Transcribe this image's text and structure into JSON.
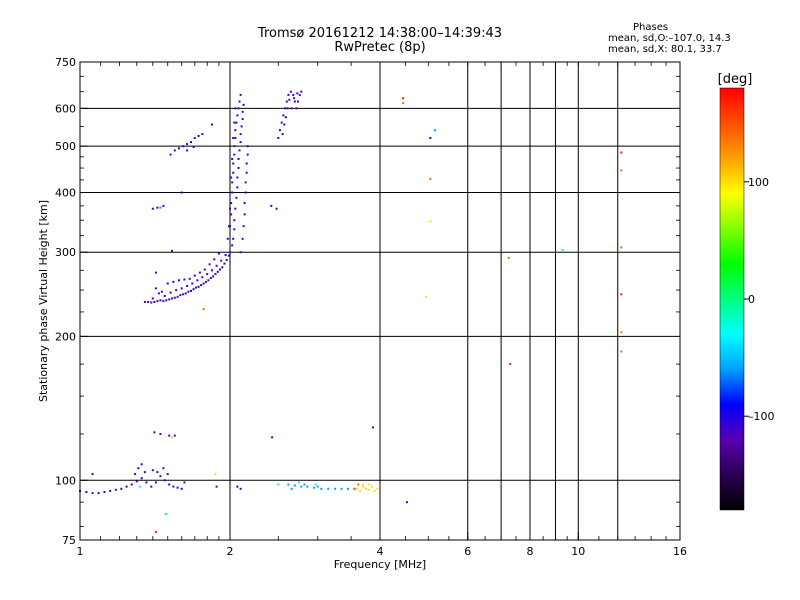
{
  "title": "Tromsø 20161212 14:38:00–14:39:43",
  "subtitle": "RwPretec (8p)",
  "phases_note": {
    "heading": "Phases",
    "line_o": "mean, sd,O:–107.0, 14.3",
    "line_x": "mean, sd,X:  80.1, 33.7"
  },
  "chart_data": {
    "type": "scatter",
    "title": "Tromsø 20161212 14:38:00–14:39:43",
    "subtitle": "RwPretec (8p)",
    "xlabel": "Frequency [MHz]",
    "ylabel": "Stationary phase Virtual Height [km]",
    "x_scale": "log",
    "y_scale": "log",
    "xlim": [
      1,
      16
    ],
    "ylim": [
      75,
      750
    ],
    "x_ticks": [
      1,
      2,
      4,
      6,
      8,
      10,
      16
    ],
    "x_tick_labels": [
      "1",
      "2",
      "4",
      "6",
      "8",
      "10",
      "16"
    ],
    "x_gridlines": [
      2,
      4,
      6,
      7,
      8,
      9,
      10,
      12
    ],
    "y_ticks": [
      75,
      100,
      200,
      300,
      400,
      500,
      600,
      750
    ],
    "y_tick_labels": [
      "75",
      "100",
      "200",
      "300",
      "400",
      "500",
      "600",
      "750"
    ],
    "y_gridlines": [
      100,
      200,
      300,
      400,
      500,
      600
    ],
    "grid": true,
    "colorbar": {
      "label": "[deg]",
      "range": [
        -180,
        180
      ],
      "ticks": [
        100,
        0,
        -100
      ],
      "tick_labels": [
        "100",
        "0",
        "–100"
      ],
      "colors": [
        "#000000",
        "#2a0050",
        "#5a00b0",
        "#0000ff",
        "#00a0ff",
        "#00ffff",
        "#00ff80",
        "#00ff00",
        "#80ff00",
        "#ffff00",
        "#ffa000",
        "#ff5000",
        "#ff0000"
      ]
    },
    "series": [
      {
        "phase": -110,
        "points": [
          [
            1.0,
            95
          ],
          [
            1.03,
            94.5
          ],
          [
            1.06,
            94
          ],
          [
            1.09,
            94
          ],
          [
            1.12,
            94.5
          ],
          [
            1.15,
            95
          ],
          [
            1.18,
            95.5
          ],
          [
            1.21,
            96
          ],
          [
            1.24,
            97
          ],
          [
            1.27,
            98
          ],
          [
            1.3,
            99.5
          ],
          [
            1.33,
            101
          ],
          [
            1.36,
            99
          ],
          [
            1.39,
            97
          ],
          [
            1.42,
            99
          ],
          [
            1.45,
            102
          ],
          [
            1.48,
            100
          ],
          [
            1.51,
            98
          ],
          [
            1.54,
            97
          ],
          [
            1.57,
            96.5
          ],
          [
            1.6,
            96
          ],
          [
            1.29,
            103
          ],
          [
            1.31,
            106
          ],
          [
            1.33,
            108
          ],
          [
            1.35,
            104
          ],
          [
            1.4,
            105
          ],
          [
            1.43,
            104
          ],
          [
            1.47,
            106
          ],
          [
            1.5,
            103
          ],
          [
            1.41,
            126
          ],
          [
            1.45,
            125
          ],
          [
            1.51,
            124
          ],
          [
            1.55,
            124
          ],
          [
            1.06,
            103
          ],
          [
            1.62,
            99
          ],
          [
            1.88,
            97
          ],
          [
            2.07,
            97
          ],
          [
            2.1,
            96
          ],
          [
            2.43,
            123
          ],
          [
            3.87,
            129
          ],
          [
            4.53,
            90
          ],
          [
            1.35,
            236
          ],
          [
            1.37,
            236
          ],
          [
            1.39,
            235.5
          ],
          [
            1.41,
            236
          ],
          [
            1.43,
            237
          ],
          [
            1.45,
            238
          ],
          [
            1.47,
            237
          ],
          [
            1.49,
            238
          ],
          [
            1.51,
            239
          ],
          [
            1.53,
            240
          ],
          [
            1.55,
            241
          ],
          [
            1.57,
            242
          ],
          [
            1.59,
            244
          ],
          [
            1.61,
            245
          ],
          [
            1.63,
            246
          ],
          [
            1.65,
            248
          ],
          [
            1.67,
            249
          ],
          [
            1.69,
            251
          ],
          [
            1.71,
            253
          ],
          [
            1.73,
            254
          ],
          [
            1.75,
            256
          ],
          [
            1.77,
            258
          ],
          [
            1.79,
            260
          ],
          [
            1.81,
            262
          ],
          [
            1.83,
            265
          ],
          [
            1.85,
            267
          ],
          [
            1.87,
            270
          ],
          [
            1.89,
            273
          ],
          [
            1.91,
            276
          ],
          [
            1.93,
            279
          ],
          [
            1.95,
            284
          ],
          [
            1.97,
            289
          ],
          [
            1.99,
            295
          ],
          [
            2.0,
            300
          ],
          [
            2.02,
            310
          ],
          [
            2.03,
            320
          ],
          [
            2.04,
            335
          ],
          [
            1.4,
            240
          ],
          [
            1.44,
            246
          ],
          [
            1.48,
            243
          ],
          [
            1.52,
            247
          ],
          [
            1.56,
            250
          ],
          [
            1.6,
            252
          ],
          [
            1.64,
            255
          ],
          [
            1.68,
            258
          ],
          [
            1.72,
            262
          ],
          [
            1.76,
            266
          ],
          [
            1.8,
            270
          ],
          [
            1.84,
            275
          ],
          [
            1.88,
            281
          ],
          [
            1.92,
            288
          ],
          [
            1.96,
            296
          ],
          [
            1.42,
            252
          ],
          [
            1.46,
            248
          ],
          [
            1.5,
            258
          ],
          [
            1.54,
            260
          ],
          [
            1.58,
            262
          ],
          [
            1.62,
            263
          ],
          [
            1.66,
            264
          ],
          [
            1.7,
            268
          ],
          [
            1.74,
            272
          ],
          [
            1.78,
            276
          ],
          [
            1.82,
            283
          ],
          [
            1.86,
            290
          ],
          [
            1.9,
            298
          ],
          [
            2.0,
            340
          ],
          [
            2.01,
            360
          ],
          [
            2.01,
            380
          ],
          [
            2.02,
            400
          ],
          [
            2.02,
            420
          ],
          [
            2.03,
            440
          ],
          [
            2.03,
            460
          ],
          [
            2.04,
            480
          ],
          [
            2.04,
            500
          ],
          [
            2.05,
            520
          ],
          [
            2.05,
            540
          ],
          [
            2.06,
            560
          ],
          [
            2.07,
            580
          ],
          [
            2.08,
            600
          ],
          [
            2.09,
            620
          ],
          [
            2.1,
            640
          ],
          [
            2.04,
            350
          ],
          [
            2.05,
            370
          ],
          [
            2.06,
            390
          ],
          [
            2.07,
            410
          ],
          [
            2.07,
            430
          ],
          [
            2.08,
            450
          ],
          [
            2.08,
            470
          ],
          [
            2.09,
            490
          ],
          [
            2.1,
            510
          ],
          [
            2.1,
            530
          ],
          [
            2.11,
            550
          ],
          [
            2.12,
            570
          ],
          [
            2.12,
            590
          ],
          [
            2.13,
            610
          ],
          [
            2.1,
            300
          ],
          [
            2.12,
            320
          ],
          [
            2.13,
            340
          ],
          [
            2.14,
            360
          ],
          [
            2.14,
            380
          ],
          [
            2.15,
            400
          ],
          [
            2.15,
            420
          ],
          [
            2.16,
            440
          ],
          [
            2.16,
            460
          ],
          [
            2.17,
            480
          ],
          [
            2.17,
            500
          ],
          [
            1.98,
            320
          ],
          [
            1.99,
            340
          ],
          [
            2.0,
            370
          ],
          [
            2.01,
            430
          ],
          [
            2.02,
            470
          ],
          [
            2.03,
            520
          ],
          [
            2.04,
            560
          ],
          [
            2.05,
            600
          ],
          [
            2.5,
            520
          ],
          [
            2.52,
            540
          ],
          [
            2.54,
            560
          ],
          [
            2.56,
            580
          ],
          [
            2.58,
            600
          ],
          [
            2.6,
            620
          ],
          [
            2.62,
            640
          ],
          [
            2.65,
            650
          ],
          [
            2.68,
            640
          ],
          [
            2.7,
            620
          ],
          [
            2.72,
            600
          ],
          [
            2.74,
            620
          ],
          [
            2.76,
            640
          ],
          [
            2.78,
            650
          ],
          [
            2.55,
            530
          ],
          [
            2.57,
            555
          ],
          [
            2.59,
            575
          ],
          [
            2.61,
            600
          ],
          [
            2.63,
            625
          ],
          [
            2.66,
            600
          ],
          [
            2.69,
            630
          ],
          [
            2.73,
            645
          ],
          [
            1.52,
            480
          ],
          [
            1.55,
            490
          ],
          [
            1.58,
            495
          ],
          [
            1.61,
            500
          ],
          [
            1.64,
            505
          ],
          [
            1.67,
            510
          ],
          [
            1.7,
            520
          ],
          [
            1.73,
            525
          ],
          [
            1.76,
            530
          ],
          [
            1.64,
            490
          ],
          [
            1.69,
            498
          ],
          [
            1.4,
            370
          ],
          [
            1.43,
            372
          ],
          [
            1.47,
            375
          ],
          [
            1.6,
            400
          ],
          [
            1.84,
            555
          ],
          [
            2.42,
            375
          ],
          [
            2.48,
            370
          ],
          [
            5.05,
            520
          ],
          [
            1.53,
            302
          ],
          [
            1.42,
            272
          ]
        ]
      },
      {
        "phase": -60,
        "points": [
          [
            2.62,
            98
          ],
          [
            2.7,
            97.5
          ],
          [
            2.78,
            97
          ],
          [
            2.86,
            97
          ],
          [
            2.95,
            96.5
          ],
          [
            3.05,
            96
          ],
          [
            3.15,
            96
          ],
          [
            3.25,
            96
          ],
          [
            3.35,
            96
          ],
          [
            3.45,
            96
          ],
          [
            3.55,
            96
          ],
          [
            2.66,
            96
          ],
          [
            2.82,
            98
          ],
          [
            3.0,
            97
          ],
          [
            1.45,
            372
          ],
          [
            5.16,
            540
          ]
        ]
      },
      {
        "phase": -20,
        "points": [
          [
            1.32,
            97
          ],
          [
            2.5,
            98
          ],
          [
            2.75,
            99
          ],
          [
            2.97,
            98
          ],
          [
            9.3,
            303
          ]
        ]
      },
      {
        "phase": 20,
        "points": [
          [
            1.49,
            85
          ]
        ]
      },
      {
        "phase": 100,
        "points": [
          [
            3.6,
            96
          ],
          [
            3.65,
            95
          ],
          [
            3.7,
            97
          ],
          [
            3.75,
            96
          ],
          [
            3.8,
            95.5
          ],
          [
            3.85,
            97
          ],
          [
            3.9,
            95
          ],
          [
            3.95,
            96
          ],
          [
            3.7,
            98
          ],
          [
            3.8,
            98
          ],
          [
            1.87,
            103
          ],
          [
            1.53,
            123
          ],
          [
            5.05,
            348
          ],
          [
            4.95,
            242
          ]
        ]
      },
      {
        "phase": 140,
        "points": [
          [
            3.56,
            96
          ],
          [
            3.62,
            98
          ],
          [
            4.45,
            615
          ],
          [
            5.05,
            427
          ],
          [
            7.25,
            292
          ],
          [
            12.2,
            445
          ],
          [
            12.2,
            307
          ],
          [
            12.2,
            204
          ],
          [
            12.2,
            186
          ],
          [
            1.77,
            228
          ]
        ]
      },
      {
        "phase": 170,
        "points": [
          [
            4.45,
            630
          ],
          [
            7.3,
            175
          ],
          [
            12.2,
            485
          ],
          [
            12.2,
            245
          ],
          [
            1.42,
            78
          ]
        ]
      }
    ]
  }
}
